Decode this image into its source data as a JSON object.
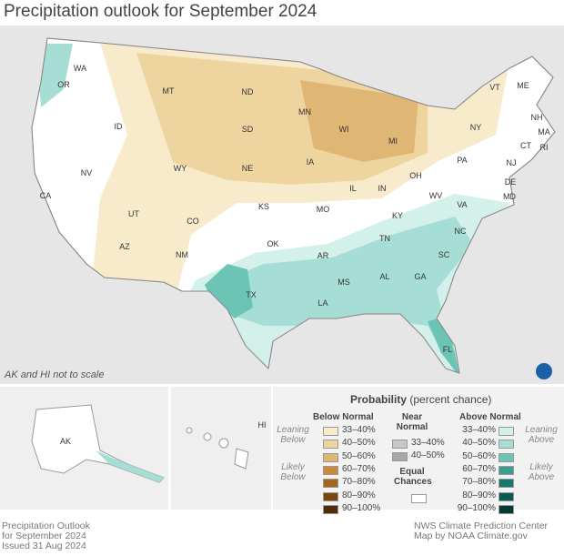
{
  "title": "Precipitation outlook for September 2024",
  "scale_note": "AK and HI not to scale",
  "states": [
    [
      "WA",
      88,
      50
    ],
    [
      "OR",
      70,
      68
    ],
    [
      "ID",
      130,
      114
    ],
    [
      "NV",
      95,
      165
    ],
    [
      "CA",
      50,
      190
    ],
    [
      "MT",
      185,
      75
    ],
    [
      "WY",
      198,
      160
    ],
    [
      "UT",
      147,
      210
    ],
    [
      "CO",
      212,
      218
    ],
    [
      "AZ",
      137,
      246
    ],
    [
      "NM",
      200,
      255
    ],
    [
      "ND",
      272,
      76
    ],
    [
      "SD",
      272,
      117
    ],
    [
      "NE",
      272,
      160
    ],
    [
      "KS",
      290,
      202
    ],
    [
      "OK",
      300,
      243
    ],
    [
      "TX",
      276,
      299
    ],
    [
      "MN",
      335,
      98
    ],
    [
      "IA",
      341,
      153
    ],
    [
      "MO",
      355,
      205
    ],
    [
      "AR",
      355,
      256
    ],
    [
      "LA",
      355,
      308
    ],
    [
      "WI",
      378,
      117
    ],
    [
      "IL",
      388,
      182
    ],
    [
      "MS",
      378,
      285
    ],
    [
      "MI",
      432,
      130
    ],
    [
      "IN",
      420,
      182
    ],
    [
      "KY",
      437,
      212
    ],
    [
      "TN",
      423,
      237
    ],
    [
      "AL",
      423,
      279
    ],
    [
      "GA",
      462,
      279
    ],
    [
      "FL",
      492,
      359
    ],
    [
      "OH",
      457,
      168
    ],
    [
      "WV",
      479,
      190
    ],
    [
      "VA",
      508,
      200
    ],
    [
      "NC",
      506,
      229
    ],
    [
      "SC",
      488,
      255
    ],
    [
      "PA",
      508,
      151
    ],
    [
      "NY",
      523,
      115
    ],
    [
      "VT",
      544,
      71
    ],
    [
      "ME",
      575,
      69
    ],
    [
      "NH",
      590,
      104
    ],
    [
      "MA",
      598,
      120
    ],
    [
      "CT",
      578,
      135
    ],
    [
      "RI",
      598,
      137
    ],
    [
      "NJ",
      562,
      154
    ],
    [
      "DE",
      561,
      175
    ],
    [
      "MD",
      560,
      191
    ]
  ],
  "inset_labels": {
    "ak": "AK",
    "hi": "HI"
  },
  "legend": {
    "title": "Probability",
    "subtitle": "(percent chance)",
    "below_header": "Below Normal",
    "near_header": "Near Normal",
    "above_header": "Above Normal",
    "leaning_below": "Leaning Below",
    "likely_below": "Likely Below",
    "leaning_above": "Leaning Above",
    "likely_above": "Likely Above",
    "equal_chances": "Equal Chances",
    "below": [
      {
        "label": "33–40%",
        "color": "#f7ebcc"
      },
      {
        "label": "40–50%",
        "color": "#eed5a0"
      },
      {
        "label": "50–60%",
        "color": "#dfb673"
      },
      {
        "label": "60–70%",
        "color": "#c98b3a"
      },
      {
        "label": "70–80%",
        "color": "#a5661d"
      },
      {
        "label": "80–90%",
        "color": "#7a4510"
      },
      {
        "label": "90–100%",
        "color": "#4f2d0a"
      }
    ],
    "near": [
      {
        "label": "33–40%",
        "color": "#c8c8c8"
      },
      {
        "label": "40–50%",
        "color": "#a7a7a7"
      }
    ],
    "above": [
      {
        "label": "33–40%",
        "color": "#d4f0eb"
      },
      {
        "label": "40–50%",
        "color": "#a6ded6"
      },
      {
        "label": "50–60%",
        "color": "#6cc4b5"
      },
      {
        "label": "60–70%",
        "color": "#3a9d90"
      },
      {
        "label": "70–80%",
        "color": "#17786d"
      },
      {
        "label": "80–90%",
        "color": "#0a5a50"
      },
      {
        "label": "90–100%",
        "color": "#053a32"
      }
    ]
  },
  "footer_left": [
    "Precipitation Outlook",
    "for September 2024",
    "Issued 31 Aug 2024"
  ],
  "footer_right": [
    "NWS Climate Prediction Center",
    "Map by NOAA Climate.gov"
  ]
}
